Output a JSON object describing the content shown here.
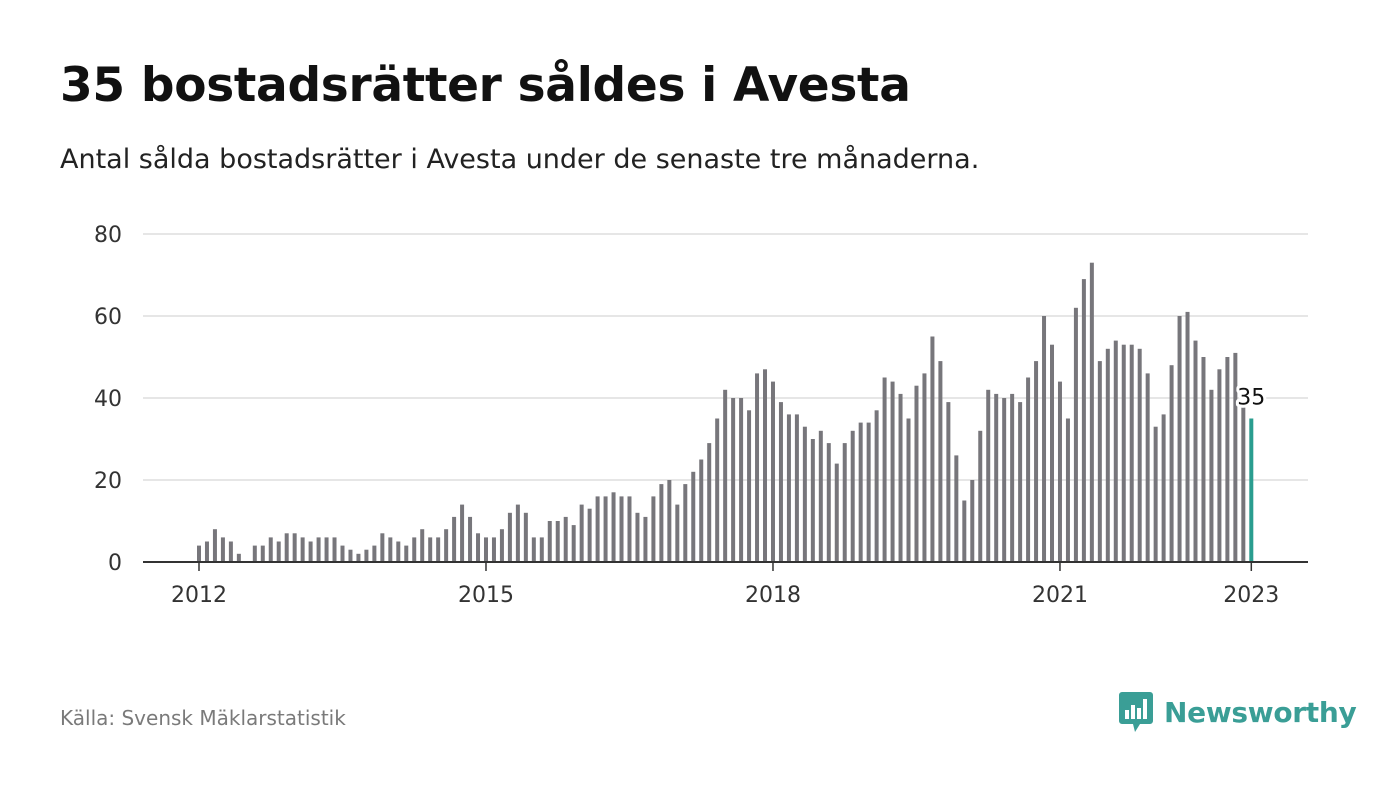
{
  "title": "35 bostadsrätter såldes i Avesta",
  "subtitle": "Antal sålda bostadsrätter i Avesta under de senaste tre månaderna.",
  "source": "Källa: Svensk Mäklarstatistik",
  "brand": {
    "name": "Newsworthy",
    "color": "#3a9e96",
    "icon": "bar-chart-speech-bubble-icon"
  },
  "colors": {
    "bar": "#77767b",
    "highlight": "#2a9d8f",
    "grid": "#dedede",
    "axis": "#333333"
  },
  "chart_data": {
    "type": "bar",
    "x_start": "2012-01",
    "x_step": "month",
    "ylim": [
      0,
      80
    ],
    "yticks": [
      0,
      20,
      40,
      60,
      80
    ],
    "xticks": [
      {
        "label": "2012",
        "date": "2012-01"
      },
      {
        "label": "2015",
        "date": "2015-01"
      },
      {
        "label": "2018",
        "date": "2018-01"
      },
      {
        "label": "2021",
        "date": "2021-01"
      },
      {
        "label": "2023",
        "date": "2023-01"
      }
    ],
    "values": [
      4,
      5,
      8,
      6,
      5,
      2,
      0,
      4,
      4,
      6,
      5,
      7,
      7,
      6,
      5,
      6,
      6,
      6,
      4,
      3,
      2,
      3,
      4,
      7,
      6,
      5,
      4,
      6,
      8,
      6,
      6,
      8,
      11,
      14,
      11,
      7,
      6,
      6,
      8,
      12,
      14,
      12,
      6,
      6,
      10,
      10,
      11,
      9,
      14,
      13,
      16,
      16,
      17,
      16,
      16,
      12,
      11,
      16,
      19,
      20,
      14,
      19,
      22,
      25,
      29,
      35,
      42,
      40,
      40,
      37,
      46,
      47,
      44,
      39,
      36,
      36,
      33,
      30,
      32,
      29,
      24,
      29,
      32,
      34,
      34,
      37,
      45,
      44,
      41,
      35,
      43,
      46,
      55,
      49,
      39,
      26,
      15,
      20,
      32,
      42,
      41,
      40,
      41,
      39,
      45,
      49,
      60,
      53,
      44,
      35,
      62,
      69,
      73,
      49,
      52,
      54,
      53,
      53,
      52,
      46,
      33,
      36,
      48,
      60,
      61,
      54,
      50,
      42,
      47,
      50,
      51,
      39,
      35
    ],
    "highlight_last": true,
    "annotation": {
      "label": "35",
      "value": 35
    }
  }
}
